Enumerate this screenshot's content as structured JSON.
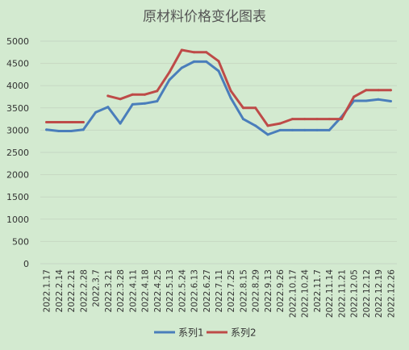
{
  "chart_data": {
    "type": "line",
    "title": "原材料价格变化图表",
    "xlabel": "",
    "ylabel": "",
    "ylim": [
      0,
      5000
    ],
    "yticks": [
      0,
      500,
      1000,
      1500,
      2000,
      2500,
      3000,
      3500,
      4000,
      4500,
      5000
    ],
    "grid": true,
    "legend_position": "bottom",
    "categories": [
      "2022.1.17",
      "2022.2.14",
      "2022.2.21",
      "2022.2.28",
      "2022.3.7",
      "2022.3.21",
      "2022.3.28",
      "2022.4.11",
      "2022.4.18",
      "2022.4.25",
      "2022.5.13",
      "2022.5.24",
      "2022.6.13",
      "2022.6.27",
      "2022.7.11",
      "2022.7.25",
      "2022.8.15",
      "2022.8.29",
      "2022.9.13",
      "2022.9.26",
      "2022.10.17",
      "2022.10.24",
      "2022.11.7",
      "2022.11.14",
      "2022.11.21",
      "2022.12.05",
      "2022.12.12",
      "2022.12.19",
      "2022.12.26"
    ],
    "series": [
      {
        "name": "系列1",
        "color": "#4a7ebb",
        "values": [
          3010,
          2980,
          2980,
          3010,
          3400,
          3520,
          3150,
          3580,
          3600,
          3650,
          4130,
          4400,
          4540,
          4540,
          4330,
          3720,
          3250,
          3100,
          2900,
          3000,
          3000,
          3000,
          3000,
          3000,
          3300,
          3660,
          3660,
          3690,
          3650
        ]
      },
      {
        "name": "系列2",
        "color": "#be4b48",
        "values": [
          3180,
          3180,
          3180,
          3180,
          null,
          3770,
          3700,
          3800,
          3800,
          3880,
          4300,
          4800,
          4750,
          4750,
          4550,
          3880,
          3500,
          3500,
          3100,
          3150,
          3250,
          3250,
          3250,
          3250,
          3250,
          3750,
          3900,
          3900,
          3900
        ]
      }
    ]
  }
}
